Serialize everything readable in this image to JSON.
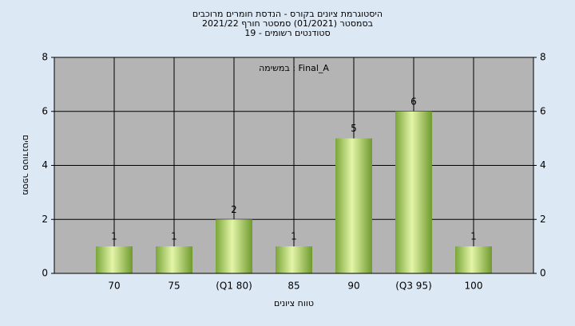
{
  "chart_data": {
    "type": "bar",
    "title_lines": [
      "היסטוגרמת ציונים בקורס - הנדסת חומרים מרוכבים",
      "בסמסטר  (01/2021)  סמסטר חורף 2021/22",
      "סטודנטים רשומים - 19"
    ],
    "annotation": "במשימה : Final_A",
    "x_label": "טווח ציונים",
    "y_label": "מספר סטודנטים",
    "categories": [
      "70",
      "75",
      "(Q1 80)",
      "85",
      "90",
      "(Q3 95)",
      "100"
    ],
    "values": [
      1,
      1,
      2,
      1,
      5,
      6,
      1
    ],
    "color": "#9cc84a",
    "ylim": [
      0,
      8
    ],
    "yticks": [
      0,
      2,
      4,
      6,
      8
    ],
    "grid": true
  }
}
